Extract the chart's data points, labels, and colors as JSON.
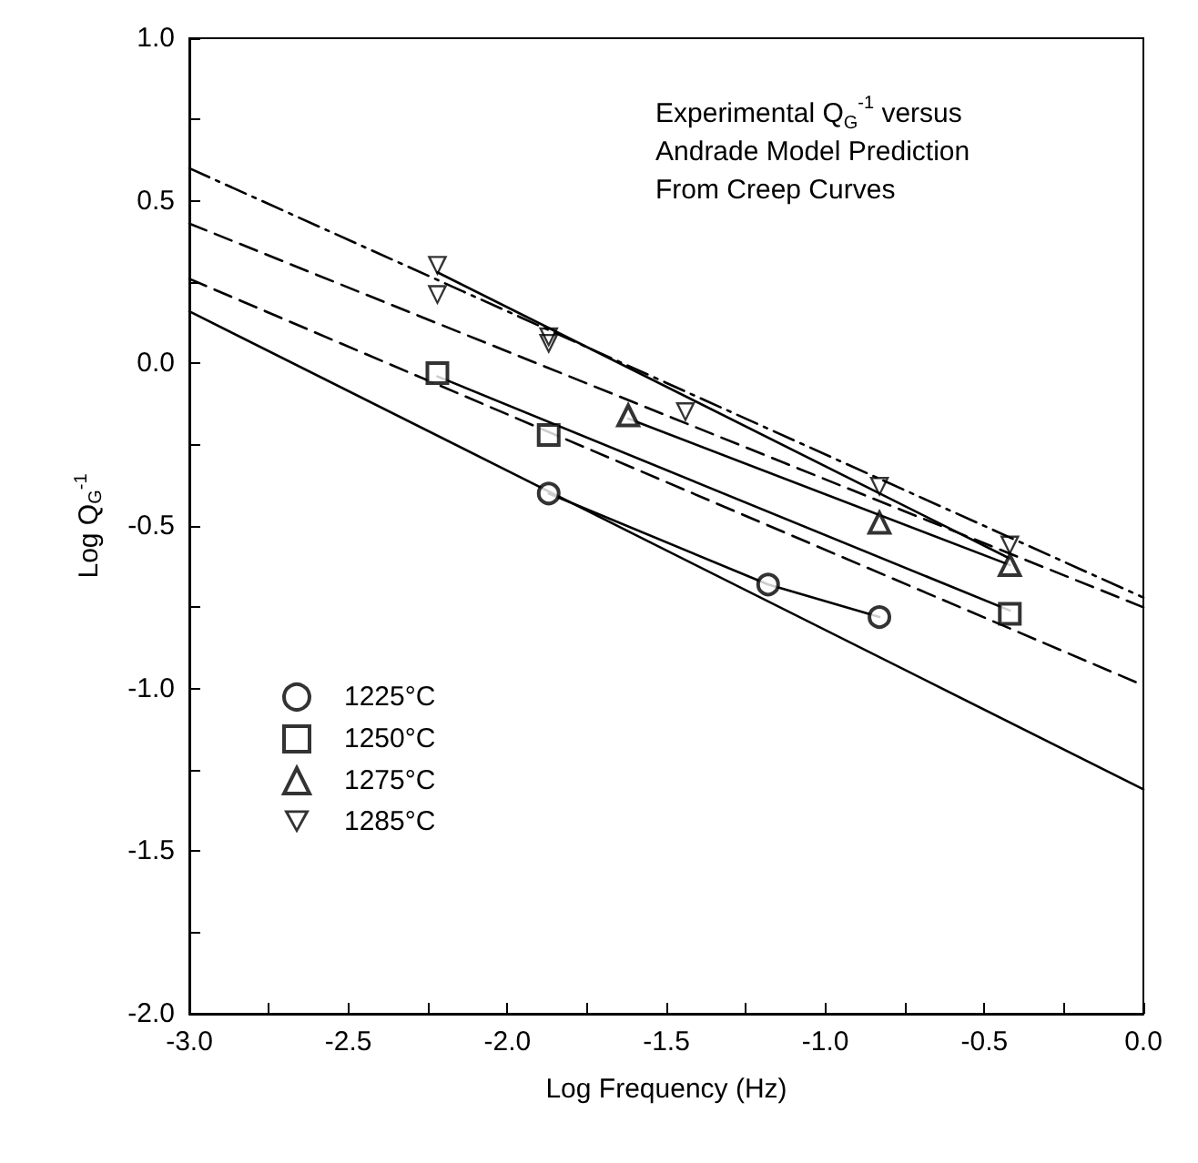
{
  "chart_data": {
    "type": "scatter",
    "xlabel": "Log Frequency (Hz)",
    "ylabel": "Log Q$_{G}$$^{-1}$",
    "annotations": [
      "Experimental Q$_{G}$$^{-1}$ versus\nAndrade Model Prediction\nFrom Creep Curves"
    ],
    "xlim": [
      -3,
      0
    ],
    "ylim": [
      -2,
      1
    ],
    "xticks": [
      {
        "value": -3,
        "label": "-3.0"
      },
      {
        "value": -2.75,
        "label": null
      },
      {
        "value": -2.5,
        "label": "-2.5"
      },
      {
        "value": -2.25,
        "label": null
      },
      {
        "value": -2,
        "label": "-2.0"
      },
      {
        "value": -1.75,
        "label": null
      },
      {
        "value": -1.5,
        "label": "-1.5"
      },
      {
        "value": -1.25,
        "label": null
      },
      {
        "value": -1,
        "label": "-1.0"
      },
      {
        "value": -0.75,
        "label": null
      },
      {
        "value": -0.5,
        "label": "-0.5"
      },
      {
        "value": -0.25,
        "label": null
      },
      {
        "value": 0,
        "label": "0.0"
      }
    ],
    "yticks": [
      {
        "value": -2,
        "label": "-2.0"
      },
      {
        "value": -1.75,
        "label": null
      },
      {
        "value": -1.5,
        "label": "-1.5"
      },
      {
        "value": -1.25,
        "label": null
      },
      {
        "value": -1,
        "label": "-1.0"
      },
      {
        "value": -0.75,
        "label": null
      },
      {
        "value": -0.5,
        "label": "-0.5"
      },
      {
        "value": -0.25,
        "label": null
      },
      {
        "value": 0,
        "label": "0.0"
      },
      {
        "value": 0.25,
        "label": null
      },
      {
        "value": 0.5,
        "label": "0.5"
      },
      {
        "value": 0.75,
        "label": null
      },
      {
        "value": 1,
        "label": "1.0"
      }
    ],
    "grid": false,
    "legend": "left",
    "series": [
      {
        "name": "1225°C",
        "marker": "circle",
        "color": "#000000",
        "x": [
          -1.87,
          -1.18,
          -0.83
        ],
        "values": [
          -0.4,
          -0.68,
          -0.78
        ]
      },
      {
        "name": "1250°C",
        "marker": "square",
        "color": "#000000",
        "x": [
          -2.22,
          -1.87,
          -0.42
        ],
        "values": [
          -0.03,
          -0.22,
          -0.77
        ]
      },
      {
        "name": "1275°C",
        "marker": "triangle",
        "color": "#000000",
        "x": [
          -1.62,
          -0.83,
          -0.42
        ],
        "values": [
          -0.16,
          -0.49,
          -0.62
        ]
      },
      {
        "name": "1285°C",
        "marker": "triangle-down",
        "color": "#000000",
        "x": [
          -2.22,
          -2.22,
          -1.87,
          -1.87,
          -1.44,
          -0.83,
          -0.42
        ],
        "values": [
          0.3,
          0.21,
          0.08,
          0.06,
          -0.15,
          -0.38,
          -0.56
        ]
      },
      {
        "type": "line",
        "marker": "none",
        "line_style": "solid",
        "color": "#000000",
        "x": [
          -1.87,
          -1.18,
          -0.83
        ],
        "values": [
          -0.4,
          -0.68,
          -0.78
        ]
      },
      {
        "type": "line",
        "marker": "none",
        "line_style": "solid",
        "color": "#000000",
        "x": [
          -2.22,
          -0.42
        ],
        "values": [
          -0.04,
          -0.76
        ]
      },
      {
        "type": "line",
        "marker": "none",
        "line_style": "solid",
        "color": "#000000",
        "x": [
          -1.62,
          -0.42
        ],
        "values": [
          -0.17,
          -0.62
        ]
      },
      {
        "type": "line",
        "marker": "none",
        "line_style": "solid",
        "color": "#000000",
        "x": [
          -2.22,
          -0.42
        ],
        "values": [
          0.28,
          -0.6
        ]
      },
      {
        "type": "line",
        "marker": "none",
        "line_style": "solid",
        "color": "#000000",
        "x": [
          -3,
          0
        ],
        "values": [
          0.16,
          -1.31
        ]
      },
      {
        "type": "line",
        "marker": "none",
        "line_style": "dashed",
        "color": "#000000",
        "x": [
          -3,
          0
        ],
        "values": [
          0.26,
          -0.99
        ]
      },
      {
        "type": "line",
        "marker": "none",
        "line_style": "dashed",
        "color": "#000000",
        "x": [
          -3,
          0
        ],
        "values": [
          0.43,
          -0.75
        ]
      },
      {
        "type": "line",
        "marker": "none",
        "line_style": "dashdot",
        "color": "#000000",
        "x": [
          -3,
          0
        ],
        "values": [
          0.6,
          -0.72
        ]
      }
    ]
  }
}
